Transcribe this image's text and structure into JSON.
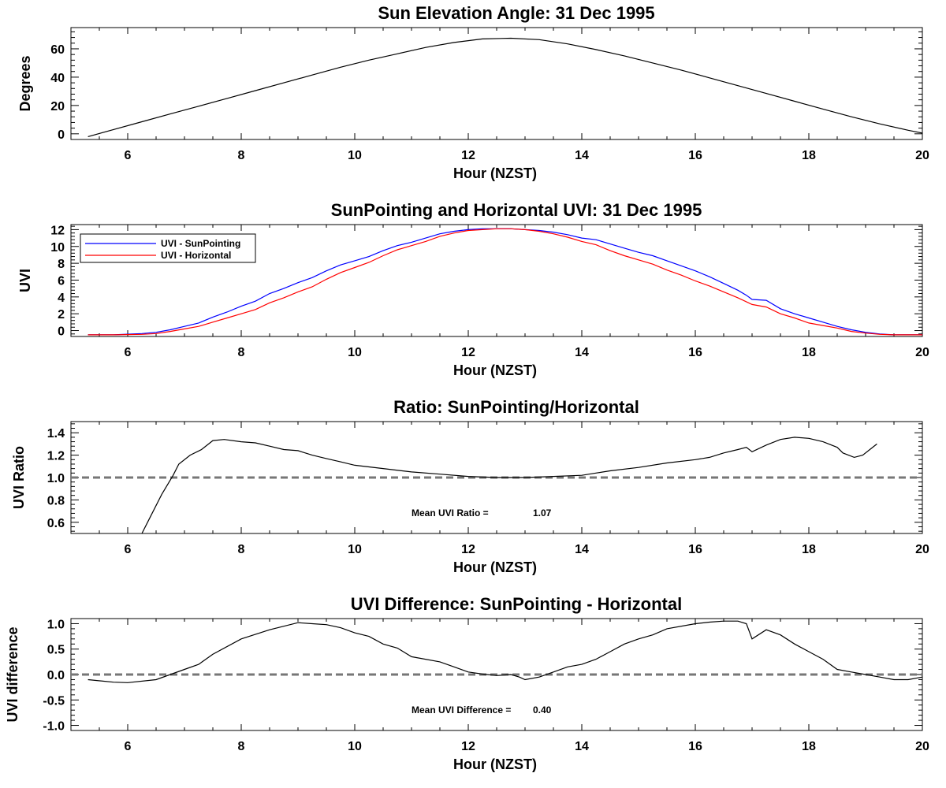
{
  "chart_data": [
    {
      "type": "line",
      "title": "Sun Elevation Angle: 31 Dec 1995",
      "xlabel": "Hour (NZST)",
      "ylabel": "Degrees",
      "xlim": [
        5.0,
        20.0
      ],
      "ylim": [
        -4,
        75
      ],
      "xticks": [
        6,
        8,
        10,
        12,
        14,
        16,
        18,
        20
      ],
      "yticks": [
        0,
        20,
        40,
        60
      ],
      "series": [
        {
          "name": "Sun Elevation",
          "color": "#000000",
          "x": [
            5.3,
            5.75,
            6.25,
            6.75,
            7.25,
            7.75,
            8.25,
            8.75,
            9.25,
            9.75,
            10.25,
            10.75,
            11.25,
            11.75,
            12.25,
            12.75,
            13.25,
            13.75,
            14.25,
            14.75,
            15.25,
            15.75,
            16.25,
            16.75,
            17.25,
            17.75,
            18.25,
            18.75,
            19.25,
            19.75,
            20.0
          ],
          "y": [
            -2,
            3,
            8.5,
            14,
            19.5,
            25,
            30.5,
            36,
            41.5,
            47,
            52,
            56.5,
            61,
            64.5,
            67,
            67.5,
            66.5,
            63.5,
            59.5,
            55,
            50,
            45,
            39.5,
            34,
            28.5,
            23,
            17.5,
            12,
            7,
            2.5,
            0.5
          ]
        }
      ]
    },
    {
      "type": "line",
      "title": "SunPointing and Horizontal UVI: 31 Dec 1995",
      "xlabel": "Hour (NZST)",
      "ylabel": "UVI",
      "xlim": [
        5.0,
        20.0
      ],
      "ylim": [
        -0.7,
        12.6
      ],
      "xticks": [
        6,
        8,
        10,
        12,
        14,
        16,
        18,
        20
      ],
      "yticks": [
        0,
        2,
        4,
        6,
        8,
        10,
        12
      ],
      "legend": "top-left",
      "series": [
        {
          "name": "UVI - SunPointing",
          "color": "#0000ff",
          "x": [
            5.3,
            5.75,
            6.25,
            6.5,
            6.75,
            7.0,
            7.25,
            7.5,
            7.75,
            8.0,
            8.25,
            8.5,
            8.75,
            9.0,
            9.25,
            9.5,
            9.75,
            10.0,
            10.25,
            10.5,
            10.75,
            11.0,
            11.25,
            11.5,
            11.75,
            12.0,
            12.25,
            12.5,
            12.75,
            13.0,
            13.25,
            13.5,
            13.75,
            14.0,
            14.25,
            14.5,
            14.75,
            15.0,
            15.25,
            15.5,
            15.75,
            16.0,
            16.25,
            16.5,
            16.75,
            16.9,
            17.0,
            17.25,
            17.5,
            17.75,
            18.0,
            18.25,
            18.5,
            18.75,
            19.0,
            19.25,
            19.5,
            19.75,
            20.0
          ],
          "values": [
            -0.5,
            -0.5,
            -0.35,
            -0.2,
            0.1,
            0.5,
            0.9,
            1.6,
            2.2,
            2.9,
            3.5,
            4.4,
            5.0,
            5.7,
            6.3,
            7.1,
            7.8,
            8.3,
            8.8,
            9.5,
            10.1,
            10.5,
            11.0,
            11.5,
            11.8,
            12.0,
            12.1,
            12.1,
            12.1,
            12.0,
            11.9,
            11.7,
            11.4,
            11.0,
            10.8,
            10.3,
            9.8,
            9.3,
            8.9,
            8.3,
            7.7,
            7.1,
            6.4,
            5.6,
            4.8,
            4.2,
            3.7,
            3.6,
            2.6,
            2.0,
            1.5,
            1.0,
            0.5,
            0.1,
            -0.2,
            -0.4,
            -0.5,
            -0.5,
            -0.5
          ]
        },
        {
          "name": "UVI - Horizontal",
          "color": "#ff0000",
          "x": [
            5.3,
            5.75,
            6.25,
            6.5,
            6.75,
            7.0,
            7.25,
            7.5,
            7.75,
            8.0,
            8.25,
            8.5,
            8.75,
            9.0,
            9.25,
            9.5,
            9.75,
            10.0,
            10.25,
            10.5,
            10.75,
            11.0,
            11.25,
            11.5,
            11.75,
            12.0,
            12.25,
            12.5,
            12.75,
            13.0,
            13.25,
            13.5,
            13.75,
            14.0,
            14.25,
            14.5,
            14.75,
            15.0,
            15.25,
            15.5,
            15.75,
            16.0,
            16.25,
            16.5,
            16.75,
            17.0,
            17.25,
            17.5,
            17.75,
            18.0,
            18.25,
            18.5,
            18.75,
            19.0,
            19.25,
            19.5,
            19.75,
            20.0
          ],
          "values": [
            -0.5,
            -0.5,
            -0.45,
            -0.35,
            -0.1,
            0.2,
            0.5,
            1.0,
            1.5,
            2.0,
            2.5,
            3.3,
            3.9,
            4.6,
            5.2,
            6.1,
            6.9,
            7.5,
            8.1,
            8.9,
            9.6,
            10.1,
            10.6,
            11.2,
            11.6,
            11.9,
            12.0,
            12.1,
            12.1,
            12.0,
            11.8,
            11.5,
            11.1,
            10.6,
            10.2,
            9.5,
            8.9,
            8.4,
            7.9,
            7.2,
            6.6,
            5.9,
            5.3,
            4.6,
            3.9,
            3.1,
            2.8,
            2.0,
            1.5,
            0.9,
            0.6,
            0.3,
            -0.1,
            -0.3,
            -0.45,
            -0.5,
            -0.5,
            -0.5
          ]
        }
      ]
    },
    {
      "type": "line",
      "title": "Ratio: SunPointing/Horizontal",
      "xlabel": "Hour (NZST)",
      "ylabel": "UVI Ratio",
      "xlim": [
        5.0,
        20.0
      ],
      "ylim": [
        0.5,
        1.5
      ],
      "xticks": [
        6,
        8,
        10,
        12,
        14,
        16,
        18,
        20
      ],
      "yticks": [
        0.6,
        0.8,
        1.0,
        1.2,
        1.4
      ],
      "reference_line": 1.0,
      "annotation": {
        "label": "Mean UVI Ratio =",
        "value": "1.07"
      },
      "series": [
        {
          "name": "UVI Ratio",
          "color": "#000000",
          "x": [
            6.25,
            6.4,
            6.6,
            6.8,
            6.9,
            7.1,
            7.3,
            7.5,
            7.7,
            8.0,
            8.25,
            8.5,
            8.75,
            9.0,
            9.25,
            9.5,
            9.75,
            10.0,
            10.5,
            11.0,
            11.5,
            12.0,
            12.5,
            13.0,
            13.5,
            14.0,
            14.25,
            14.5,
            15.0,
            15.5,
            16.0,
            16.25,
            16.5,
            16.75,
            16.9,
            17.0,
            17.25,
            17.5,
            17.75,
            18.0,
            18.25,
            18.5,
            18.6,
            18.8,
            18.95,
            19.2
          ],
          "values": [
            0.5,
            0.65,
            0.85,
            1.02,
            1.12,
            1.2,
            1.25,
            1.33,
            1.34,
            1.32,
            1.31,
            1.28,
            1.25,
            1.24,
            1.2,
            1.17,
            1.14,
            1.11,
            1.08,
            1.05,
            1.03,
            1.01,
            1.0,
            1.0,
            1.01,
            1.02,
            1.04,
            1.06,
            1.09,
            1.13,
            1.16,
            1.18,
            1.22,
            1.25,
            1.27,
            1.23,
            1.29,
            1.34,
            1.36,
            1.35,
            1.32,
            1.27,
            1.22,
            1.18,
            1.2,
            1.3
          ]
        }
      ]
    },
    {
      "type": "line",
      "title": "UVI Difference: SunPointing - Horizontal",
      "xlabel": "Hour (NZST)",
      "ylabel": "UVI difference",
      "xlim": [
        5.0,
        20.0
      ],
      "ylim": [
        -1.1,
        1.1
      ],
      "xticks": [
        6,
        8,
        10,
        12,
        14,
        16,
        18,
        20
      ],
      "yticks": [
        -1.0,
        -0.5,
        0.0,
        0.5,
        1.0
      ],
      "reference_line": 0.0,
      "annotation": {
        "label": "Mean UVI Difference =",
        "value": "0.40"
      },
      "series": [
        {
          "name": "UVI difference",
          "color": "#000000",
          "x": [
            5.3,
            5.75,
            6.0,
            6.5,
            6.75,
            7.0,
            7.25,
            7.5,
            8.0,
            8.5,
            9.0,
            9.25,
            9.5,
            9.75,
            10.0,
            10.25,
            10.5,
            10.75,
            11.0,
            11.5,
            11.75,
            12.0,
            12.25,
            12.5,
            12.75,
            12.9,
            13.0,
            13.25,
            13.5,
            13.75,
            14.0,
            14.25,
            14.5,
            14.75,
            15.0,
            15.25,
            15.5,
            16.0,
            16.25,
            16.5,
            16.75,
            16.9,
            17.0,
            17.25,
            17.5,
            17.75,
            18.0,
            18.25,
            18.5,
            18.75,
            19.0,
            19.25,
            19.5,
            19.75,
            20.0
          ],
          "values": [
            -0.1,
            -0.15,
            -0.16,
            -0.1,
            0.0,
            0.1,
            0.2,
            0.4,
            0.7,
            0.88,
            1.02,
            1.0,
            0.98,
            0.92,
            0.82,
            0.75,
            0.6,
            0.52,
            0.35,
            0.25,
            0.15,
            0.05,
            0.01,
            -0.02,
            0.0,
            -0.05,
            -0.1,
            -0.05,
            0.05,
            0.15,
            0.2,
            0.3,
            0.45,
            0.6,
            0.7,
            0.78,
            0.9,
            1.0,
            1.03,
            1.05,
            1.05,
            1.0,
            0.7,
            0.88,
            0.78,
            0.6,
            0.45,
            0.3,
            0.1,
            0.05,
            0.0,
            -0.05,
            -0.1,
            -0.1,
            -0.05
          ]
        }
      ]
    }
  ]
}
